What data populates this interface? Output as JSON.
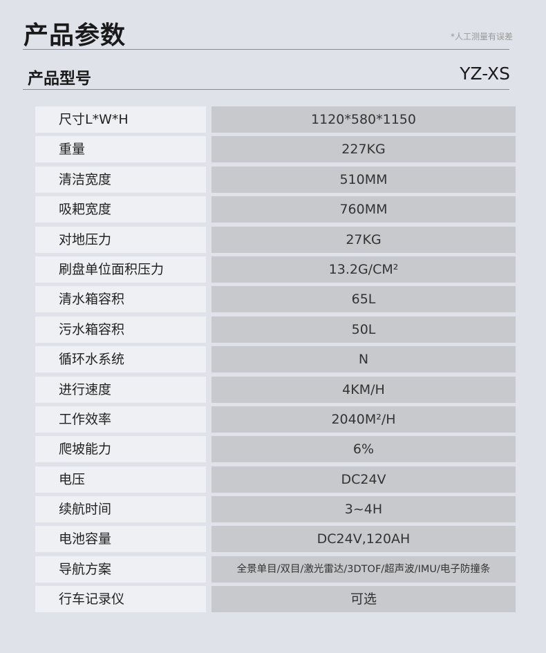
{
  "header": {
    "title": "产品参数",
    "note": "*人工测量有误差"
  },
  "model": {
    "label": "产品型号",
    "value": "YZ-XS"
  },
  "specs": [
    {
      "key": "尺寸L*W*H",
      "value": "1120*580*1150"
    },
    {
      "key": "重量",
      "value": "227KG"
    },
    {
      "key": "清洁宽度",
      "value": "510MM"
    },
    {
      "key": "吸耙宽度",
      "value": "760MM"
    },
    {
      "key": "对地压力",
      "value": "27KG"
    },
    {
      "key": "刷盘单位面积压力",
      "value": "13.2G/CM²"
    },
    {
      "key": "清水箱容积",
      "value": "65L"
    },
    {
      "key": "污水箱容积",
      "value": "50L"
    },
    {
      "key": "循环水系统",
      "value": "N"
    },
    {
      "key": "进行速度",
      "value": "4KM/H"
    },
    {
      "key": "工作效率",
      "value": "2040M²/H"
    },
    {
      "key": "爬坡能力",
      "value": "6%"
    },
    {
      "key": "电压",
      "value": "DC24V"
    },
    {
      "key": "续航时间",
      "value": "3~4H"
    },
    {
      "key": "电池容量",
      "value": "DC24V,120AH"
    },
    {
      "key": "导航方案",
      "value": "全景单目/双目/激光雷达/3DTOF/超声波/IMU/电子防撞条"
    },
    {
      "key": "行车记录仪",
      "value": "可选"
    }
  ]
}
